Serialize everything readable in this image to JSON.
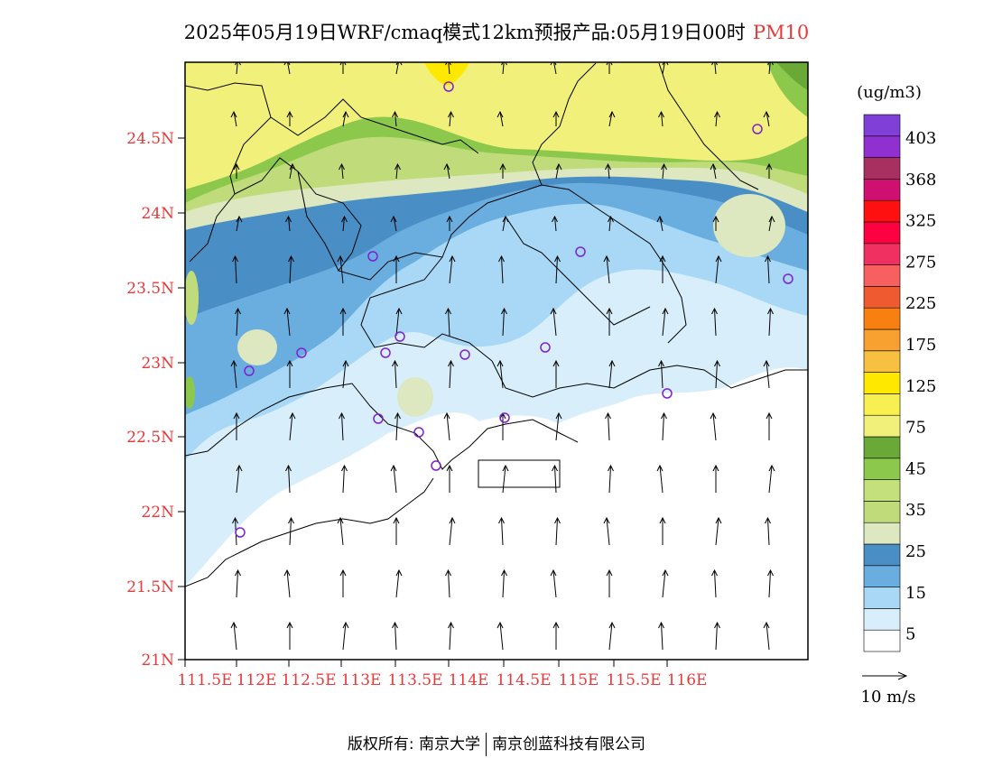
{
  "title": {
    "text": "2025年05月19日WRF/cmaq模式12km预报产品:05月19日00时",
    "pollutant": "PM10"
  },
  "map": {
    "lat_labels": [
      "24.5N",
      "24N",
      "23.5N",
      "23N",
      "22.5N",
      "22N",
      "21.5N",
      "21N"
    ],
    "lon_labels": [
      "111.5E",
      "112E",
      "112.5E",
      "113E",
      "113.5E",
      "114E",
      "114.5E",
      "115E",
      "115.5E",
      "116E"
    ]
  },
  "colorbar": {
    "unit": "(ug/m3)",
    "labels": [
      "403",
      "368",
      "325",
      "275",
      "225",
      "175",
      "125",
      "75",
      "45",
      "35",
      "25",
      "15",
      "5"
    ],
    "colors": [
      "#ffffff",
      "#d8eefa",
      "#a8d8f5",
      "#6aaee0",
      "#4a8ec6",
      "#dde8c0",
      "#c0dc7a",
      "#c4e07a",
      "#8cc84c",
      "#6aa838",
      "#f0f07a",
      "#f8f050",
      "#ffe800",
      "#f8c040",
      "#f8a030",
      "#f88010",
      "#f05a30",
      "#f86060",
      "#f03060",
      "#ff0040",
      "#ff1010",
      "#d01070",
      "#a83060",
      "#9030d0",
      "#8040d8"
    ]
  },
  "wind_legend": {
    "label": "10 m/s"
  },
  "footer": {
    "left": "版权所有: 南京大学",
    "right": "南京创蓝科技有限公司"
  }
}
